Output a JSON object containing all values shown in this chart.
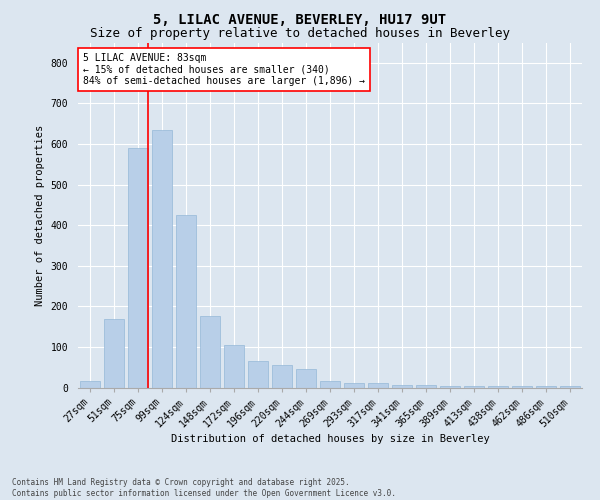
{
  "title1": "5, LILAC AVENUE, BEVERLEY, HU17 9UT",
  "title2": "Size of property relative to detached houses in Beverley",
  "xlabel": "Distribution of detached houses by size in Beverley",
  "ylabel": "Number of detached properties",
  "categories": [
    "27sqm",
    "51sqm",
    "75sqm",
    "99sqm",
    "124sqm",
    "148sqm",
    "172sqm",
    "196sqm",
    "220sqm",
    "244sqm",
    "269sqm",
    "293sqm",
    "317sqm",
    "341sqm",
    "365sqm",
    "389sqm",
    "413sqm",
    "438sqm",
    "462sqm",
    "486sqm",
    "510sqm"
  ],
  "values": [
    15,
    170,
    590,
    635,
    425,
    175,
    105,
    65,
    55,
    45,
    15,
    10,
    10,
    5,
    5,
    3,
    3,
    3,
    3,
    3,
    3
  ],
  "bar_color": "#b8cfe8",
  "bar_edge_color": "#95b8d8",
  "red_line_x": 2.42,
  "annotation_title": "5 LILAC AVENUE: 83sqm",
  "annotation_line1": "← 15% of detached houses are smaller (340)",
  "annotation_line2": "84% of semi-detached houses are larger (1,896) →",
  "ylim": [
    0,
    850
  ],
  "yticks": [
    0,
    100,
    200,
    300,
    400,
    500,
    600,
    700,
    800
  ],
  "background_color": "#dce6f0",
  "plot_bg_color": "#dce6f0",
  "footer1": "Contains HM Land Registry data © Crown copyright and database right 2025.",
  "footer2": "Contains public sector information licensed under the Open Government Licence v3.0.",
  "title_fontsize": 10,
  "subtitle_fontsize": 9,
  "axis_label_fontsize": 7.5,
  "tick_fontsize": 7,
  "annotation_fontsize": 7,
  "footer_fontsize": 5.5
}
